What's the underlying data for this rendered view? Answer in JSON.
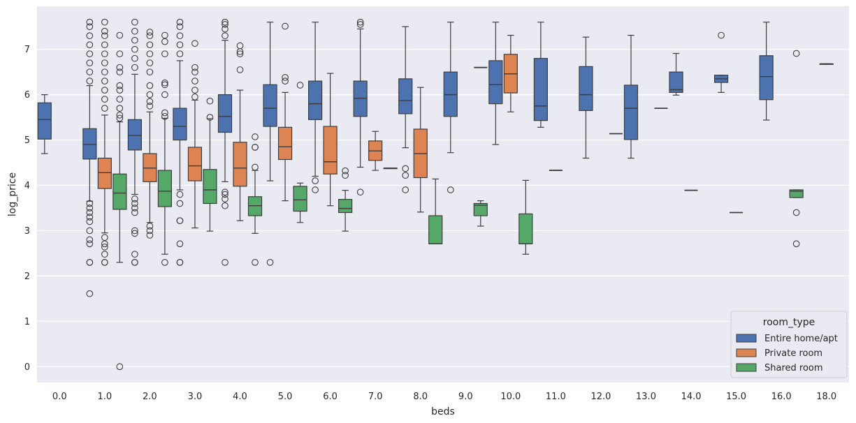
{
  "chart_data": {
    "type": "boxplot",
    "title": "",
    "xlabel": "beds",
    "ylabel": "log_price",
    "ylim": [
      -0.35,
      7.95
    ],
    "yticks": [
      0,
      1,
      2,
      3,
      4,
      5,
      6,
      7
    ],
    "ytick_labels": [
      "0",
      "1",
      "2",
      "3",
      "4",
      "5",
      "6",
      "7"
    ],
    "categories": [
      "0.0",
      "1.0",
      "2.0",
      "3.0",
      "4.0",
      "5.0",
      "6.0",
      "7.0",
      "8.0",
      "9.0",
      "10.0",
      "11.0",
      "12.0",
      "13.0",
      "14.0",
      "15.0",
      "16.0",
      "18.0"
    ],
    "legend": {
      "title": "room_type",
      "placement": "lower-right",
      "entries": [
        "Entire home/apt",
        "Private room",
        "Shared room"
      ]
    },
    "colors": {
      "background": "#eaeaf2",
      "grid": "#ffffff",
      "edge": "#3d3d3d",
      "Entire home/apt": "#4c72b0",
      "Private room": "#dd8452",
      "Shared room": "#55a868"
    },
    "series": [
      {
        "name": "Entire home/apt",
        "boxes": [
          {
            "cat": "0.0",
            "whislo": 4.7,
            "q1": 5.02,
            "med": 5.45,
            "q3": 5.82,
            "whishi": 6.0,
            "fliers": []
          },
          {
            "cat": "1.0",
            "whislo": 3.65,
            "q1": 4.58,
            "med": 4.9,
            "q3": 5.25,
            "whishi": 6.2,
            "fliers": [
              1.61,
              2.3,
              2.3,
              2.71,
              2.8,
              3.0,
              3.2,
              3.3,
              3.4,
              3.5,
              3.6,
              6.3,
              6.5,
              6.7,
              6.9,
              7.1,
              7.3,
              7.5,
              7.6
            ]
          },
          {
            "cat": "2.0",
            "whislo": 3.8,
            "q1": 4.78,
            "med": 5.1,
            "q3": 5.45,
            "whishi": 6.45,
            "fliers": [
              2.3,
              2.3,
              2.48,
              2.94,
              3.0,
              3.4,
              3.5,
              3.6,
              3.7,
              6.6,
              6.8,
              7.0,
              7.2,
              7.4,
              7.6
            ]
          },
          {
            "cat": "3.0",
            "whislo": 3.9,
            "q1": 5.0,
            "med": 5.3,
            "q3": 5.7,
            "whishi": 6.75,
            "fliers": [
              2.3,
              2.3,
              2.71,
              3.22,
              3.22,
              3.6,
              3.8,
              6.9,
              7.1,
              7.3,
              7.5,
              7.6
            ]
          },
          {
            "cat": "4.0",
            "whislo": 4.08,
            "q1": 5.17,
            "med": 5.52,
            "q3": 6.0,
            "whishi": 7.2,
            "fliers": [
              2.3,
              3.55,
              3.7,
              3.8,
              3.85,
              7.3,
              7.45,
              7.55,
              7.6
            ]
          },
          {
            "cat": "5.0",
            "whislo": 4.1,
            "q1": 5.3,
            "med": 5.7,
            "q3": 6.22,
            "whishi": 7.6,
            "fliers": [
              2.3
            ]
          },
          {
            "cat": "6.0",
            "whislo": 4.2,
            "q1": 5.45,
            "med": 5.8,
            "q3": 6.3,
            "whishi": 7.6,
            "fliers": [
              3.9,
              4.1
            ]
          },
          {
            "cat": "7.0",
            "whislo": 4.4,
            "q1": 5.52,
            "med": 5.92,
            "q3": 6.3,
            "whishi": 7.45,
            "fliers": [
              3.85,
              7.55,
              7.6
            ]
          },
          {
            "cat": "8.0",
            "whislo": 4.83,
            "q1": 5.58,
            "med": 5.87,
            "q3": 6.35,
            "whishi": 7.5,
            "fliers": [
              3.9,
              4.22,
              4.37
            ]
          },
          {
            "cat": "9.0",
            "whislo": 4.72,
            "q1": 5.52,
            "med": 6.0,
            "q3": 6.5,
            "whishi": 7.6,
            "fliers": [
              3.9
            ]
          },
          {
            "cat": "10.0",
            "whislo": 4.9,
            "q1": 5.8,
            "med": 6.22,
            "q3": 6.75,
            "whishi": 7.6,
            "fliers": []
          },
          {
            "cat": "11.0",
            "whislo": 5.28,
            "q1": 5.43,
            "med": 5.75,
            "q3": 6.8,
            "whishi": 7.6,
            "fliers": []
          },
          {
            "cat": "12.0",
            "whislo": 4.6,
            "q1": 5.65,
            "med": 6.0,
            "q3": 6.62,
            "whishi": 7.27,
            "fliers": []
          },
          {
            "cat": "13.0",
            "whislo": 4.6,
            "q1": 5.01,
            "med": 5.7,
            "q3": 6.21,
            "whishi": 7.31,
            "fliers": []
          },
          {
            "cat": "14.0",
            "whislo": 5.99,
            "q1": 6.05,
            "med": 6.11,
            "q3": 6.5,
            "whishi": 6.91,
            "fliers": []
          },
          {
            "cat": "15.0",
            "whislo": 6.05,
            "q1": 6.27,
            "med": 6.35,
            "q3": 6.43,
            "whishi": 6.43,
            "fliers": [
              7.31
            ]
          },
          {
            "cat": "16.0",
            "whislo": 5.44,
            "q1": 5.89,
            "med": 6.4,
            "q3": 6.86,
            "whishi": 7.6,
            "fliers": []
          },
          {
            "cat": "18.0",
            "whislo": 6.68,
            "q1": 6.68,
            "med": 6.68,
            "q3": 6.68,
            "whishi": 6.68,
            "fliers": [],
            "centered": true
          }
        ]
      },
      {
        "name": "Private room",
        "boxes": [
          {
            "cat": "1.0",
            "whislo": 2.95,
            "q1": 3.93,
            "med": 4.28,
            "q3": 4.6,
            "whishi": 5.55,
            "fliers": [
              2.3,
              2.3,
              2.48,
              2.64,
              2.71,
              2.85,
              5.7,
              5.9,
              6.1,
              6.3,
              6.5,
              6.7,
              6.9,
              7.1,
              7.3,
              7.4,
              7.6
            ]
          },
          {
            "cat": "2.0",
            "whislo": 3.18,
            "q1": 4.08,
            "med": 4.38,
            "q3": 4.7,
            "whishi": 5.62,
            "fliers": [
              2.9,
              3.0,
              3.1,
              5.75,
              5.85,
              6.0,
              6.2,
              6.5,
              6.7,
              6.9,
              7.1,
              7.3,
              7.38
            ]
          },
          {
            "cat": "3.0",
            "whislo": 3.06,
            "q1": 4.1,
            "med": 4.43,
            "q3": 4.84,
            "whishi": 5.88,
            "fliers": [
              5.95,
              6.1,
              6.3,
              6.5,
              6.6,
              7.13
            ]
          },
          {
            "cat": "4.0",
            "whislo": 3.22,
            "q1": 3.98,
            "med": 4.38,
            "q3": 4.95,
            "whishi": 6.1,
            "fliers": [
              6.55,
              6.9,
              6.95,
              7.08
            ]
          },
          {
            "cat": "5.0",
            "whislo": 3.66,
            "q1": 4.57,
            "med": 4.85,
            "q3": 5.28,
            "whishi": 6.05,
            "fliers": [
              6.3,
              6.38,
              7.51
            ]
          },
          {
            "cat": "6.0",
            "whislo": 3.55,
            "q1": 4.25,
            "med": 4.52,
            "q3": 5.3,
            "whishi": 6.47,
            "fliers": []
          },
          {
            "cat": "7.0",
            "whislo": 4.33,
            "q1": 4.55,
            "med": 4.76,
            "q3": 4.98,
            "whishi": 5.19,
            "fliers": []
          },
          {
            "cat": "8.0",
            "whislo": 3.41,
            "q1": 4.17,
            "med": 4.7,
            "q3": 5.24,
            "whishi": 6.16,
            "fliers": []
          },
          {
            "cat": "10.0",
            "whislo": 5.62,
            "q1": 6.04,
            "med": 6.46,
            "q3": 6.89,
            "whishi": 7.31,
            "fliers": []
          }
        ]
      },
      {
        "name": "Shared room",
        "boxes": [
          {
            "cat": "1.0",
            "whislo": 2.3,
            "q1": 3.47,
            "med": 3.83,
            "q3": 4.25,
            "whishi": 5.4,
            "fliers": [
              0.0,
              5.48,
              5.55,
              5.7,
              5.9,
              6.1,
              6.2,
              6.5,
              6.6,
              6.9,
              7.31
            ]
          },
          {
            "cat": "2.0",
            "whislo": 2.48,
            "q1": 3.53,
            "med": 3.87,
            "q3": 4.33,
            "whishi": 5.48,
            "fliers": [
              2.3,
              5.52,
              5.6,
              6.0,
              6.22,
              6.26,
              6.9,
              7.17,
              7.31
            ]
          },
          {
            "cat": "3.0",
            "whislo": 2.99,
            "q1": 3.6,
            "med": 3.9,
            "q3": 4.35,
            "whishi": 5.47,
            "fliers": [
              5.5,
              5.86
            ]
          },
          {
            "cat": "4.0",
            "whislo": 2.94,
            "q1": 3.33,
            "med": 3.55,
            "q3": 3.75,
            "whishi": 4.33,
            "fliers": [
              2.3,
              4.4,
              4.84,
              4.84,
              5.07
            ]
          },
          {
            "cat": "5.0",
            "whislo": 3.18,
            "q1": 3.43,
            "med": 3.68,
            "q3": 3.98,
            "whishi": 4.05,
            "fliers": [
              6.21
            ]
          },
          {
            "cat": "6.0",
            "whislo": 2.99,
            "q1": 3.4,
            "med": 3.49,
            "q3": 3.69,
            "whishi": 3.89,
            "fliers": [
              4.22,
              4.32
            ]
          },
          {
            "cat": "7.0",
            "whislo": 4.38,
            "q1": 4.38,
            "med": 4.38,
            "q3": 4.38,
            "whishi": 4.38,
            "fliers": []
          },
          {
            "cat": "8.0",
            "whislo": 2.71,
            "q1": 2.71,
            "med": 2.71,
            "q3": 3.33,
            "whishi": 4.14,
            "fliers": []
          },
          {
            "cat": "9.0",
            "whislo": 3.1,
            "q1": 3.33,
            "med": 3.56,
            "q3": 3.6,
            "whishi": 3.66,
            "fliers": []
          },
          {
            "cat": "10.0",
            "whislo": 2.48,
            "q1": 2.71,
            "med": 2.71,
            "q3": 3.37,
            "whishi": 4.11,
            "fliers": []
          },
          {
            "cat": "16.0",
            "whislo": 3.73,
            "q1": 3.73,
            "med": 3.87,
            "q3": 3.9,
            "whishi": 3.9,
            "fliers": [
              2.71,
              3.4,
              6.91
            ]
          }
        ]
      }
    ],
    "single_value_marks": [
      {
        "series": "Entire home/apt",
        "cat": "9.0",
        "value": 6.6,
        "offset": "right"
      },
      {
        "series": "Entire home/apt",
        "cat": "11.0",
        "value": 4.33,
        "offset": "center"
      },
      {
        "series": "Entire home/apt",
        "cat": "12.0",
        "value": 5.14,
        "offset": "right"
      },
      {
        "series": "Entire home/apt",
        "cat": "13.0",
        "value": 5.7,
        "offset": "right"
      },
      {
        "series": "Entire home/apt",
        "cat": "14.0",
        "value": 3.89,
        "offset": "center"
      },
      {
        "series": "Entire home/apt",
        "cat": "15.0",
        "value": 3.4,
        "offset": "center"
      }
    ]
  }
}
